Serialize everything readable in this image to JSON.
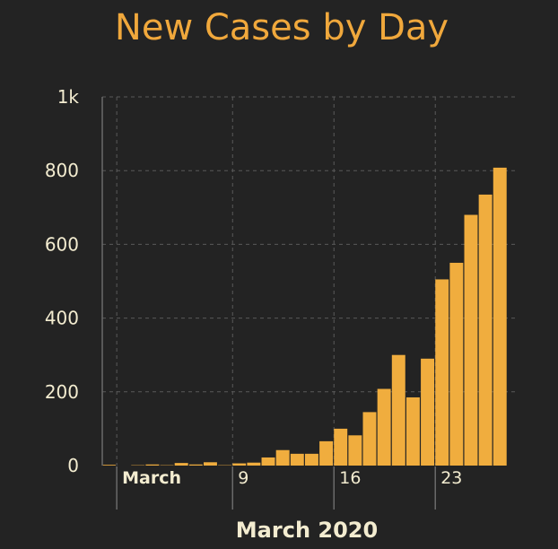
{
  "chart_data": {
    "type": "bar",
    "title": "New Cases by Day",
    "xlabel": "March 2020",
    "ylabel": "",
    "ylim": [
      0,
      1000
    ],
    "y_ticks": [
      0,
      200,
      400,
      600,
      800,
      1000
    ],
    "y_tick_labels": [
      "0",
      "200",
      "400",
      "600",
      "800",
      "1k"
    ],
    "x_tick_labels": [
      {
        "label": "March",
        "date": "2020-03-01",
        "bold": true
      },
      {
        "label": "9",
        "date": "2020-03-09",
        "bold": false
      },
      {
        "label": "16",
        "date": "2020-03-16",
        "bold": false
      },
      {
        "label": "23",
        "date": "2020-03-23",
        "bold": false
      }
    ],
    "grid": true,
    "bar_color": "#f0ad3e",
    "categories": [
      "2020-02-29",
      "2020-03-01",
      "2020-03-02",
      "2020-03-03",
      "2020-03-04",
      "2020-03-05",
      "2020-03-06",
      "2020-03-07",
      "2020-03-08",
      "2020-03-09",
      "2020-03-10",
      "2020-03-11",
      "2020-03-12",
      "2020-03-13",
      "2020-03-14",
      "2020-03-15",
      "2020-03-16",
      "2020-03-17",
      "2020-03-18",
      "2020-03-19",
      "2020-03-20",
      "2020-03-21",
      "2020-03-22",
      "2020-03-23",
      "2020-03-24",
      "2020-03-25",
      "2020-03-26",
      "2020-03-27",
      "2020-03-28"
    ],
    "values": [
      2,
      0,
      1,
      3,
      1,
      7,
      3,
      9,
      1,
      6,
      8,
      22,
      42,
      32,
      32,
      66,
      100,
      82,
      145,
      208,
      300,
      185,
      290,
      505,
      550,
      680,
      735,
      808,
      0
    ]
  }
}
